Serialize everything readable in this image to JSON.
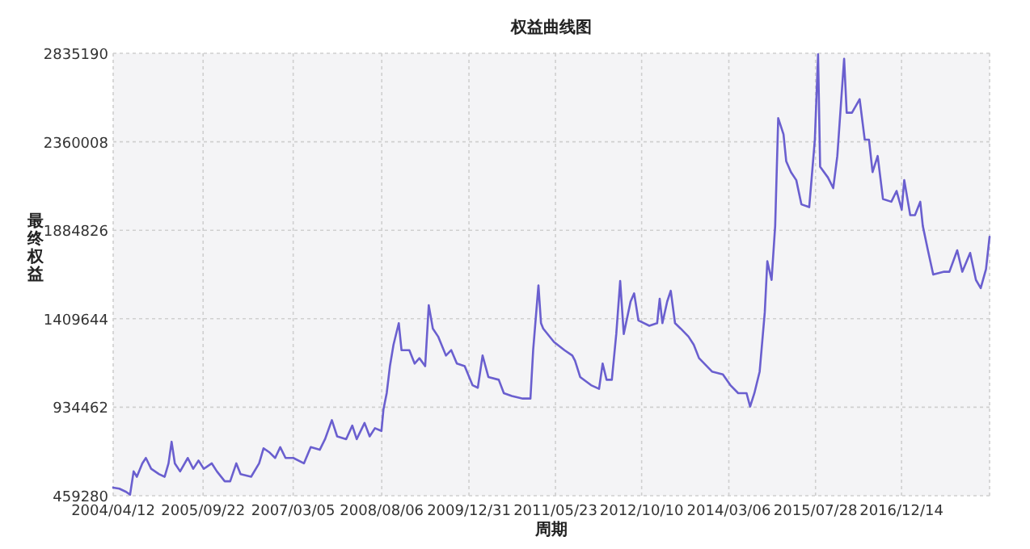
{
  "chart_data": {
    "type": "line",
    "title": "权益曲线图",
    "xlabel": "周期",
    "ylabel": "最终权益",
    "xlim": [
      "2004-04-12",
      "2018-05-15"
    ],
    "ylim": [
      459280,
      2835190
    ],
    "xticks": [
      {
        "value": "2004-04-12",
        "label": "2004/04/12"
      },
      {
        "value": "2005-09-22",
        "label": "2005/09/22"
      },
      {
        "value": "2007-03-05",
        "label": "2007/03/05"
      },
      {
        "value": "2008-08-06",
        "label": "2008/08/06"
      },
      {
        "value": "2009-12-31",
        "label": "2009/12/31"
      },
      {
        "value": "2011-05-23",
        "label": "2011/05/23"
      },
      {
        "value": "2012-10-10",
        "label": "2012/10/10"
      },
      {
        "value": "2014-03-06",
        "label": "2014/03/06"
      },
      {
        "value": "2015-07-28",
        "label": "2015/07/28"
      },
      {
        "value": "2016-12-14",
        "label": "2016/12/14"
      }
    ],
    "yticks": [
      459280,
      934462,
      1409644,
      1884826,
      2360008,
      2835190
    ],
    "grid": true,
    "x": [
      "2004-04-12",
      "2004-05-18",
      "2004-06-27",
      "2004-07-20",
      "2004-08-10",
      "2004-08-29",
      "2004-09-30",
      "2004-10-21",
      "2004-11-21",
      "2005-01-07",
      "2005-02-08",
      "2005-03-03",
      "2005-03-21",
      "2005-04-09",
      "2005-05-10",
      "2005-06-24",
      "2005-07-26",
      "2005-08-26",
      "2005-09-26",
      "2005-11-12",
      "2005-12-12",
      "2006-01-27",
      "2006-02-28",
      "2006-04-05",
      "2006-04-30",
      "2006-07-01",
      "2006-08-17",
      "2006-09-12",
      "2006-10-18",
      "2006-11-19",
      "2006-12-19",
      "2007-01-19",
      "2007-03-06",
      "2007-05-07",
      "2007-06-16",
      "2007-08-08",
      "2007-09-08",
      "2007-10-18",
      "2007-11-18",
      "2008-01-10",
      "2008-02-15",
      "2008-03-12",
      "2008-04-27",
      "2008-05-27",
      "2008-06-27",
      "2008-08-04",
      "2008-08-16",
      "2008-09-04",
      "2008-09-23",
      "2008-10-14",
      "2008-11-14",
      "2008-11-30",
      "2009-01-15",
      "2009-02-15",
      "2009-03-15",
      "2009-04-18",
      "2009-05-09",
      "2009-06-02",
      "2009-07-03",
      "2009-08-18",
      "2009-09-18",
      "2009-10-21",
      "2009-12-06",
      "2010-01-21",
      "2010-02-21",
      "2010-03-21",
      "2010-04-24",
      "2010-06-24",
      "2010-07-24",
      "2010-09-09",
      "2010-11-12",
      "2010-12-27",
      "2011-01-12",
      "2011-02-12",
      "2011-02-27",
      "2011-03-12",
      "2011-05-14",
      "2011-07-15",
      "2011-08-30",
      "2011-09-15",
      "2011-10-15",
      "2011-12-18",
      "2012-02-03",
      "2012-02-24",
      "2012-03-18",
      "2012-04-18",
      "2012-05-14",
      "2012-06-06",
      "2012-06-27",
      "2012-08-06",
      "2012-08-27",
      "2012-09-21",
      "2012-11-24",
      "2013-01-09",
      "2013-01-24",
      "2013-02-09",
      "2013-03-09",
      "2013-03-30",
      "2013-04-24",
      "2013-05-27",
      "2013-07-12",
      "2013-08-12",
      "2013-09-12",
      "2013-11-27",
      "2014-01-30",
      "2014-03-15",
      "2014-04-30",
      "2014-06-18",
      "2014-07-09",
      "2014-08-03",
      "2014-09-03",
      "2014-10-03",
      "2014-10-18",
      "2014-11-12",
      "2014-12-03",
      "2014-12-21",
      "2015-01-21",
      "2015-02-06",
      "2015-03-06",
      "2015-04-06",
      "2015-05-06",
      "2015-06-21",
      "2015-07-24",
      "2015-08-12",
      "2015-08-24",
      "2015-10-09",
      "2015-11-09",
      "2015-12-03",
      "2015-12-24",
      "2016-01-12",
      "2016-01-27",
      "2016-02-27",
      "2016-04-12",
      "2016-05-12",
      "2016-06-06",
      "2016-06-27",
      "2016-07-27",
      "2016-08-27",
      "2016-10-15",
      "2016-11-15",
      "2016-12-15",
      "2016-12-30",
      "2017-02-03",
      "2017-03-03",
      "2017-04-03",
      "2017-04-18",
      "2017-05-18",
      "2017-06-18",
      "2017-08-21",
      "2017-09-21",
      "2017-11-06",
      "2017-12-06",
      "2018-01-21",
      "2018-02-24",
      "2018-03-24",
      "2018-04-24",
      "2018-05-15"
    ],
    "series": [
      {
        "color": "#6a5fcf",
        "values": [
          503000,
          497000,
          480000,
          465000,
          590000,
          561000,
          633000,
          662000,
          604000,
          575000,
          561000,
          633000,
          749000,
          633000,
          590000,
          662000,
          604000,
          648000,
          604000,
          633000,
          590000,
          537000,
          537000,
          633000,
          575000,
          561000,
          633000,
          714000,
          691000,
          662000,
          720000,
          662000,
          662000,
          633000,
          720000,
          706000,
          763000,
          865000,
          778000,
          763000,
          836000,
          763000,
          850000,
          778000,
          822000,
          807000,
          923000,
          1010000,
          1155000,
          1270000,
          1386000,
          1241000,
          1241000,
          1169000,
          1198000,
          1155000,
          1482000,
          1357000,
          1314000,
          1212000,
          1241000,
          1169000,
          1155000,
          1053000,
          1039000,
          1212000,
          1097000,
          1082000,
          1010000,
          995000,
          981000,
          981000,
          1241000,
          1589000,
          1386000,
          1357000,
          1285000,
          1241000,
          1212000,
          1184000,
          1097000,
          1053000,
          1033000,
          1169000,
          1082000,
          1082000,
          1328000,
          1612000,
          1328000,
          1502000,
          1546000,
          1401000,
          1372000,
          1386000,
          1517000,
          1386000,
          1502000,
          1560000,
          1386000,
          1357000,
          1314000,
          1270000,
          1198000,
          1126000,
          1111000,
          1053000,
          1010000,
          1010000,
          938000,
          1010000,
          1126000,
          1444000,
          1719000,
          1618000,
          1908000,
          2487000,
          2400000,
          2255000,
          2197000,
          2154000,
          2024000,
          2009000,
          2371000,
          2830000,
          2226000,
          2168000,
          2111000,
          2284000,
          2560000,
          2806000,
          2516000,
          2516000,
          2589000,
          2371000,
          2371000,
          2197000,
          2284000,
          2053000,
          2038000,
          2096000,
          1995000,
          2154000,
          1966000,
          1966000,
          2038000,
          1908000,
          1777000,
          1647000,
          1662000,
          1662000,
          1777000,
          1662000,
          1763000,
          1618000,
          1574000,
          1676000,
          1850000
        ]
      }
    ]
  }
}
